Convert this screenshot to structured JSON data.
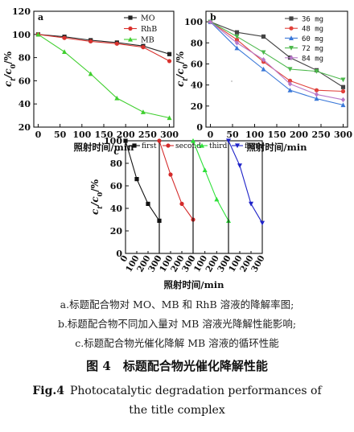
{
  "chart_data": [
    {
      "id": "a",
      "type": "line",
      "panel_label": "a",
      "xlabel": "照射时间/min",
      "ylabel": "ct/c0/%",
      "xlim": [
        -10,
        310
      ],
      "ylim": [
        20,
        120
      ],
      "xticks": [
        0,
        50,
        100,
        150,
        200,
        250,
        300
      ],
      "yticks": [
        20,
        40,
        60,
        80,
        100,
        120
      ],
      "legend_position": "top-right",
      "series": [
        {
          "name": "MO",
          "color": "#222222",
          "marker": "square",
          "x": [
            0,
            60,
            120,
            180,
            240,
            300
          ],
          "y": [
            100,
            98,
            95,
            93,
            90,
            83
          ]
        },
        {
          "name": "RhB",
          "color": "#d9322e",
          "marker": "circle",
          "x": [
            0,
            60,
            120,
            180,
            240,
            300
          ],
          "y": [
            100,
            97,
            94,
            92,
            89,
            77
          ]
        },
        {
          "name": "MB",
          "color": "#3fcf2e",
          "marker": "triangle",
          "x": [
            0,
            60,
            120,
            180,
            240,
            300
          ],
          "y": [
            100,
            85,
            66,
            45,
            33,
            28
          ]
        }
      ]
    },
    {
      "id": "b",
      "type": "line",
      "panel_label": "b",
      "xlabel": "照射时间/min",
      "ylabel": "ct/c0/%",
      "xlim": [
        -10,
        310
      ],
      "ylim": [
        0,
        110
      ],
      "xticks": [
        0,
        50,
        100,
        150,
        200,
        250,
        300
      ],
      "yticks": [
        0,
        20,
        40,
        60,
        80,
        100
      ],
      "legend_position": "top-right",
      "series": [
        {
          "name": "36 mg",
          "color": "#444444",
          "marker": "square",
          "x": [
            0,
            60,
            120,
            180,
            240,
            300
          ],
          "y": [
            100,
            90,
            86,
            66,
            54,
            38
          ]
        },
        {
          "name": "48 mg",
          "color": "#e0413b",
          "marker": "circle",
          "x": [
            0,
            60,
            120,
            180,
            240,
            300
          ],
          "y": [
            100,
            83,
            62,
            44,
            35,
            34
          ]
        },
        {
          "name": "60 mg",
          "color": "#3a78d8",
          "marker": "triangle",
          "x": [
            0,
            60,
            120,
            180,
            240,
            300
          ],
          "y": [
            100,
            75,
            55,
            35,
            27,
            21
          ]
        },
        {
          "name": "72 mg",
          "color": "#4cb84c",
          "marker": "triangle-down",
          "x": [
            0,
            60,
            120,
            180,
            240,
            300
          ],
          "y": [
            100,
            86,
            71,
            55,
            53,
            45
          ]
        },
        {
          "name": "84 mg",
          "color": "#b878c8",
          "marker": "diamond",
          "x": [
            0,
            60,
            120,
            180,
            240,
            300
          ],
          "y": [
            100,
            80,
            64,
            41,
            31,
            26
          ]
        }
      ]
    },
    {
      "id": "c",
      "type": "line",
      "panel_label": "c",
      "xlabel": "照射时间/min",
      "ylabel": "ct/c0/%",
      "ylim": [
        0,
        100
      ],
      "yticks": [
        0,
        20,
        40,
        60,
        80,
        100
      ],
      "xticks": [
        0,
        100,
        200,
        300
      ],
      "xlim": [
        0,
        300
      ],
      "legend_position": "top",
      "series": [
        {
          "name": "first",
          "color": "#111111",
          "marker": "square",
          "x": [
            0,
            100,
            200,
            300
          ],
          "y": [
            100,
            66,
            44,
            29
          ]
        },
        {
          "name": "second",
          "color": "#d42a2a",
          "marker": "circle",
          "x": [
            0,
            100,
            200,
            300
          ],
          "y": [
            100,
            70,
            44,
            30
          ]
        },
        {
          "name": "third",
          "color": "#2ee03a",
          "marker": "triangle",
          "x": [
            0,
            100,
            200,
            300
          ],
          "y": [
            100,
            74,
            48,
            29
          ]
        },
        {
          "name": "forth",
          "color": "#1e22c8",
          "marker": "triangle-down",
          "x": [
            0,
            100,
            200,
            300
          ],
          "y": [
            100,
            78,
            44,
            27
          ]
        }
      ]
    }
  ],
  "captions": {
    "sub_a": "a.标题配合物对 MO、MB 和 RhB 溶液的降解率图;",
    "sub_b": "b.标题配合物不同加入量对 MB 溶液光降解性能影响;",
    "sub_c": "c.标题配合物光催化降解 MB 溶液的循环性能",
    "title_label": "图 4",
    "title_text": "标题配合物光催化降解性能",
    "en_label": "Fig.4",
    "en_line1": "Photocatalytic degradation performances of",
    "en_line2": "the title complex"
  }
}
